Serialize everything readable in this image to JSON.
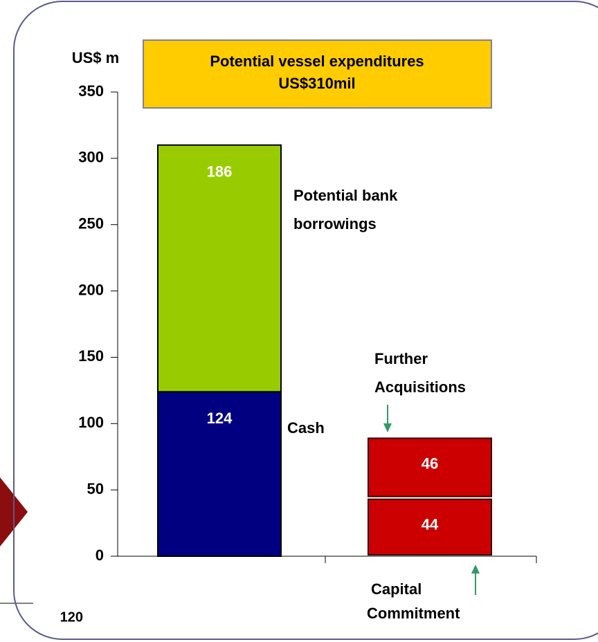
{
  "chart_data": {
    "type": "bar",
    "stacked": true,
    "title": [
      "Potential vessel expenditures",
      "US$310mil"
    ],
    "ylabel": "US$ m",
    "categories": [
      null,
      null
    ],
    "series": [
      {
        "colors": [
          "#000080",
          "#cc0000"
        ],
        "values": [
          124,
          44
        ]
      },
      {
        "colors": [
          "#99cc00",
          "#cc0000"
        ],
        "values": [
          186,
          46
        ]
      }
    ],
    "ylim": [
      0,
      350
    ],
    "yticks": [
      0,
      50,
      100,
      150,
      200,
      250,
      300,
      350
    ],
    "annotations": [
      {
        "lines": [
          "Potential bank",
          "borrowings"
        ]
      },
      {
        "lines": [
          "Cash"
        ]
      },
      {
        "lines": [
          "Further",
          "Acquisitions"
        ]
      },
      {
        "lines": [
          "Capital",
          "Commitment"
        ]
      }
    ]
  },
  "fragment_label": "120"
}
